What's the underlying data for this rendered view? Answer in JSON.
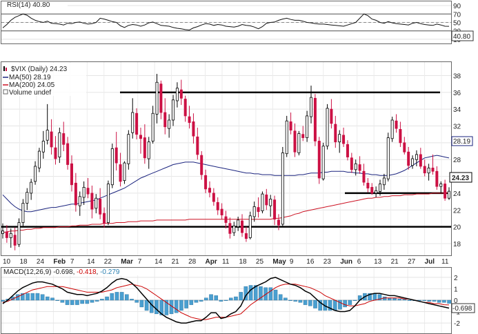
{
  "rsi": {
    "label": "RSI(14) 40.80",
    "current_label": "40.80",
    "ticks": [
      "90",
      "70",
      "50",
      "30",
      "10"
    ],
    "levels": [
      90,
      70,
      50,
      30,
      10
    ],
    "guides": [
      70,
      30
    ],
    "series": [
      37,
      45,
      55,
      62,
      66,
      70,
      67,
      60,
      55,
      52,
      50,
      53,
      48,
      47,
      46,
      44,
      48,
      47,
      50,
      51,
      48,
      46,
      47,
      50,
      60,
      58,
      55,
      52,
      50,
      42,
      38,
      43,
      45,
      44,
      41,
      44,
      49,
      51,
      47,
      43,
      42,
      41,
      38,
      36,
      35,
      33,
      32,
      37,
      40,
      44,
      47,
      46,
      43,
      45,
      44,
      41,
      40,
      39,
      41,
      45,
      43,
      42,
      39,
      35,
      40,
      48,
      50,
      51,
      55,
      58,
      60,
      57,
      55,
      55,
      53,
      50,
      49,
      47,
      46,
      46,
      45,
      44,
      43,
      42,
      41,
      44,
      47,
      50,
      60,
      70,
      66,
      58,
      55,
      50,
      48,
      52,
      49,
      47,
      46,
      45,
      44,
      48,
      50,
      47,
      45,
      44,
      43,
      46,
      44,
      41,
      40.8
    ]
  },
  "main": {
    "title": "$VIX (Daily) 24.23",
    "legend": [
      {
        "name": "MA(50) 28.19",
        "color": "#1a237e"
      },
      {
        "name": "MA(200) 24.05",
        "color": "#cc1122"
      },
      {
        "name": "Volume undef",
        "color": "#666666"
      }
    ],
    "price_labels": {
      "ma50": "28.19",
      "last": "24.23"
    },
    "y_ticks": [
      "38",
      "36",
      "34",
      "32",
      "30",
      "28",
      "26",
      "24",
      "22",
      "20",
      "18"
    ],
    "y_tick_values": [
      38,
      36,
      34,
      32,
      30,
      28,
      26,
      24,
      22,
      20,
      18
    ],
    "ylim": [
      16.6,
      39.6
    ],
    "x_labels": [
      "10",
      "18",
      "24",
      "Feb",
      "7",
      "14",
      "22",
      "Mar",
      "7",
      "14",
      "21",
      "28",
      "Apr",
      "11",
      "18",
      "25",
      "May",
      "9",
      "16",
      "23",
      "Jun",
      "6",
      "13",
      "21",
      "27",
      "Jul",
      "11"
    ],
    "bold_x_labels": [
      "Feb",
      "Mar",
      "Apr",
      "May",
      "Jun",
      "Jul"
    ]
  },
  "macd": {
    "label_prefix": "MACD(12,26,9)",
    "macd_value": "-0.698",
    "signal_value": "-0.418",
    "hist_value": "-0.279",
    "current_label": "-0.698",
    "ticks": [
      "2",
      "1",
      "0",
      "-1",
      "-2"
    ],
    "tick_values": [
      2,
      1,
      0,
      -1,
      -2
    ],
    "colors": {
      "macd": "#000000",
      "signal": "#cc0000",
      "hist": "#4a9fd0"
    }
  },
  "chart_data": {
    "type": "candlestick",
    "title": "$VIX (Daily) 24.23",
    "ylim": [
      16.6,
      39.6
    ],
    "horizontal_lines": [
      20,
      24,
      36
    ],
    "x_labels": [
      "10",
      "18",
      "24",
      "Feb",
      "7",
      "14",
      "22",
      "Mar",
      "7",
      "14",
      "21",
      "28",
      "Apr",
      "11",
      "18",
      "25",
      "May",
      "9",
      "16",
      "23",
      "Jun",
      "6",
      "13",
      "21",
      "27",
      "Jul",
      "11"
    ],
    "ohlc": [
      [
        19.2,
        20.4,
        18.6,
        19.5
      ],
      [
        19.4,
        20.2,
        18.1,
        18.7
      ],
      [
        18.7,
        19.8,
        17.5,
        19.2
      ],
      [
        19.0,
        19.9,
        17.2,
        17.8
      ],
      [
        17.9,
        21.0,
        17.6,
        20.5
      ],
      [
        20.5,
        23.3,
        20.1,
        22.8
      ],
      [
        22.8,
        24.6,
        22.0,
        24.1
      ],
      [
        24.0,
        25.7,
        23.2,
        25.3
      ],
      [
        25.4,
        27.8,
        25.0,
        27.2
      ],
      [
        27.0,
        29.4,
        26.5,
        29.0
      ],
      [
        28.9,
        31.4,
        28.1,
        30.2
      ],
      [
        30.3,
        34.6,
        29.8,
        31.5
      ],
      [
        31.3,
        32.8,
        28.6,
        29.5
      ],
      [
        29.4,
        30.8,
        27.4,
        28.1
      ],
      [
        28.3,
        31.8,
        27.6,
        31.2
      ],
      [
        31.1,
        32.5,
        29.0,
        29.8
      ],
      [
        29.9,
        30.7,
        26.8,
        27.4
      ],
      [
        27.5,
        28.5,
        24.2,
        25.0
      ],
      [
        25.2,
        26.4,
        21.8,
        22.6
      ],
      [
        22.5,
        24.2,
        21.3,
        23.6
      ],
      [
        23.5,
        25.4,
        22.6,
        24.7
      ],
      [
        24.6,
        25.8,
        23.4,
        23.9
      ],
      [
        24.0,
        24.9,
        21.0,
        22.1
      ],
      [
        22.2,
        23.9,
        21.6,
        23.4
      ],
      [
        23.3,
        24.6,
        20.9,
        21.5
      ],
      [
        21.6,
        22.3,
        19.9,
        20.4
      ],
      [
        20.5,
        25.5,
        20.2,
        25.1
      ],
      [
        25.0,
        29.9,
        24.6,
        29.3
      ],
      [
        29.4,
        31.3,
        26.7,
        27.6
      ],
      [
        27.4,
        28.8,
        24.8,
        25.4
      ],
      [
        25.5,
        27.8,
        25.1,
        27.6
      ],
      [
        27.5,
        31.5,
        26.8,
        31.0
      ],
      [
        31.2,
        35.3,
        30.5,
        33.6
      ],
      [
        33.5,
        34.1,
        30.4,
        31.0
      ],
      [
        30.9,
        31.8,
        28.7,
        30.5
      ],
      [
        30.6,
        32.2,
        27.5,
        28.2
      ],
      [
        28.1,
        30.7,
        26.9,
        30.1
      ],
      [
        30.2,
        34.4,
        29.9,
        33.5
      ],
      [
        33.4,
        38.2,
        32.3,
        37.2
      ],
      [
        37.0,
        37.4,
        32.8,
        33.6
      ],
      [
        33.6,
        35.3,
        31.0,
        31.9
      ],
      [
        31.7,
        33.4,
        30.6,
        32.7
      ],
      [
        32.7,
        35.7,
        32.0,
        35.1
      ],
      [
        35.0,
        37.2,
        34.2,
        36.5
      ],
      [
        36.3,
        37.5,
        34.5,
        35.3
      ],
      [
        35.2,
        35.6,
        32.5,
        33.2
      ],
      [
        33.1,
        34.4,
        31.7,
        32.4
      ],
      [
        32.5,
        33.5,
        29.9,
        30.8
      ],
      [
        30.7,
        31.8,
        28.0,
        28.6
      ],
      [
        28.5,
        29.0,
        25.6,
        26.2
      ],
      [
        26.1,
        26.8,
        24.0,
        24.5
      ],
      [
        24.6,
        25.4,
        23.5,
        24.1
      ],
      [
        24.0,
        24.6,
        22.5,
        23.0
      ],
      [
        22.9,
        23.5,
        21.4,
        22.0
      ],
      [
        22.1,
        22.8,
        20.9,
        21.4
      ],
      [
        21.2,
        21.9,
        19.8,
        20.5
      ],
      [
        20.4,
        21.1,
        18.6,
        19.2
      ],
      [
        19.3,
        20.6,
        18.9,
        20.1
      ],
      [
        20.0,
        21.2,
        19.5,
        20.8
      ],
      [
        20.7,
        21.5,
        18.8,
        19.3
      ],
      [
        19.2,
        20.0,
        18.2,
        18.6
      ],
      [
        18.7,
        21.8,
        18.5,
        21.3
      ],
      [
        21.2,
        23.0,
        20.6,
        22.4
      ],
      [
        22.3,
        23.5,
        21.1,
        21.8
      ],
      [
        21.9,
        24.2,
        21.6,
        23.9
      ],
      [
        23.8,
        24.5,
        22.0,
        22.6
      ],
      [
        22.5,
        23.8,
        21.2,
        23.3
      ],
      [
        23.2,
        23.7,
        20.2,
        20.9
      ],
      [
        20.8,
        21.5,
        19.6,
        20.2
      ],
      [
        20.3,
        29.5,
        20.1,
        28.8
      ],
      [
        28.7,
        33.2,
        28.3,
        32.6
      ],
      [
        32.5,
        33.6,
        31.0,
        31.5
      ],
      [
        31.4,
        32.3,
        28.3,
        28.9
      ],
      [
        28.8,
        31.4,
        28.5,
        31.1
      ],
      [
        31.0,
        32.0,
        30.2,
        30.6
      ],
      [
        30.6,
        33.8,
        30.1,
        33.2
      ],
      [
        33.1,
        36.8,
        32.3,
        35.4
      ],
      [
        35.3,
        35.8,
        29.6,
        30.2
      ],
      [
        30.2,
        30.7,
        25.1,
        25.8
      ],
      [
        25.7,
        30.0,
        25.5,
        29.6
      ],
      [
        29.6,
        34.6,
        29.2,
        34.1
      ],
      [
        34.0,
        35.2,
        31.7,
        32.3
      ],
      [
        32.2,
        33.2,
        29.4,
        30.1
      ],
      [
        30.1,
        31.5,
        28.8,
        31.0
      ],
      [
        30.9,
        31.8,
        29.5,
        29.9
      ],
      [
        29.8,
        30.3,
        27.9,
        28.3
      ],
      [
        28.2,
        28.8,
        26.4,
        26.8
      ],
      [
        26.8,
        28.0,
        26.1,
        27.5
      ],
      [
        27.4,
        28.4,
        26.3,
        26.7
      ],
      [
        26.6,
        27.5,
        24.9,
        25.3
      ],
      [
        25.2,
        25.8,
        24.1,
        24.6
      ],
      [
        24.7,
        25.2,
        23.8,
        24.0
      ],
      [
        24.0,
        24.8,
        23.5,
        24.3
      ],
      [
        24.2,
        25.6,
        23.7,
        25.1
      ],
      [
        25.0,
        26.3,
        24.4,
        25.8
      ],
      [
        25.7,
        31.2,
        25.4,
        30.6
      ],
      [
        30.5,
        33.1,
        30.1,
        32.7
      ],
      [
        32.6,
        33.4,
        31.2,
        31.7
      ],
      [
        31.6,
        32.5,
        29.5,
        30.0
      ],
      [
        30.0,
        30.7,
        28.6,
        28.9
      ],
      [
        28.9,
        29.5,
        26.8,
        27.3
      ],
      [
        27.3,
        28.5,
        26.9,
        28.1
      ],
      [
        28.0,
        29.1,
        27.2,
        28.6
      ],
      [
        28.6,
        29.4,
        26.9,
        27.2
      ],
      [
        27.2,
        28.0,
        26.0,
        26.4
      ],
      [
        26.4,
        27.5,
        25.5,
        27.0
      ],
      [
        27.0,
        28.6,
        26.2,
        26.6
      ],
      [
        26.6,
        27.2,
        24.4,
        24.8
      ],
      [
        24.8,
        25.4,
        24.0,
        25.1
      ],
      [
        25.1,
        25.6,
        23.1,
        23.4
      ],
      [
        23.4,
        24.7,
        23.2,
        24.23
      ]
    ],
    "ma50": [
      23.8,
      23.3,
      22.8,
      22.4,
      22.1,
      21.9,
      21.8,
      21.8,
      21.9,
      22.0,
      22.1,
      22.2,
      22.3,
      22.3,
      22.4,
      22.5,
      22.6,
      22.7,
      22.7,
      22.8,
      22.9,
      23.0,
      23.1,
      23.2,
      23.4,
      23.6,
      23.8,
      24.0,
      24.2,
      24.4,
      24.6,
      24.9,
      25.2,
      25.5,
      25.8,
      26.0,
      26.2,
      26.4,
      26.6,
      26.8,
      27.0,
      27.2,
      27.4,
      27.5,
      27.6,
      27.7,
      27.7,
      27.7,
      27.6,
      27.5,
      27.4,
      27.3,
      27.2,
      27.1,
      27.0,
      26.9,
      26.8,
      26.7,
      26.6,
      26.5,
      26.4,
      26.4,
      26.3,
      26.3,
      26.2,
      26.2,
      26.2,
      26.1,
      26.1,
      26.1,
      26.1,
      26.1,
      26.1,
      26.2,
      26.2,
      26.3,
      26.4,
      26.4,
      26.4,
      26.5,
      26.5,
      26.6,
      26.6,
      26.6,
      26.6,
      26.5,
      26.5,
      26.4,
      26.4,
      26.3,
      26.3,
      26.2,
      26.2,
      26.1,
      26.1,
      26.1,
      26.2,
      26.3,
      26.5,
      26.7,
      27.0,
      27.3,
      27.6,
      27.9,
      28.2,
      28.3,
      28.4,
      28.5,
      28.4,
      28.3,
      28.19
    ],
    "ma200": [
      19.3,
      19.4,
      19.5,
      19.5,
      19.6,
      19.6,
      19.7,
      19.7,
      19.8,
      19.8,
      19.9,
      19.9,
      19.9,
      19.9,
      20.0,
      20.0,
      20.0,
      20.1,
      20.1,
      20.2,
      20.2,
      20.2,
      20.3,
      20.3,
      20.3,
      20.4,
      20.4,
      20.4,
      20.5,
      20.5,
      20.5,
      20.6,
      20.6,
      20.6,
      20.7,
      20.7,
      20.7,
      20.7,
      20.8,
      20.8,
      20.8,
      20.8,
      20.8,
      20.8,
      20.8,
      20.8,
      20.9,
      20.9,
      20.9,
      20.9,
      20.9,
      20.9,
      20.9,
      20.9,
      20.9,
      20.9,
      20.9,
      20.9,
      20.9,
      20.9,
      20.9,
      20.9,
      20.9,
      20.9,
      20.9,
      20.9,
      20.9,
      21.0,
      21.0,
      21.1,
      21.2,
      21.3,
      21.5,
      21.6,
      21.8,
      21.9,
      22.0,
      22.1,
      22.2,
      22.3,
      22.4,
      22.5,
      22.6,
      22.7,
      22.8,
      22.9,
      23.0,
      23.1,
      23.2,
      23.3,
      23.4,
      23.4,
      23.5,
      23.5,
      23.6,
      23.6,
      23.7,
      23.7,
      23.7,
      23.8,
      23.8,
      23.8,
      23.9,
      23.9,
      23.9,
      23.9,
      24.0,
      24.0,
      24.0,
      24.0,
      24.05
    ],
    "macd": [
      -0.3,
      0.0,
      0.4,
      0.8,
      1.1,
      1.3,
      1.5,
      1.6,
      1.6,
      1.5,
      1.4,
      1.2,
      1.0,
      0.7,
      0.6,
      0.5,
      0.5,
      0.4,
      0.5,
      0.6,
      0.8,
      1.1,
      1.5,
      1.8,
      1.9,
      1.8,
      1.5,
      1.1,
      0.6,
      0.1,
      -0.4,
      -0.8,
      -1.2,
      -1.5,
      -1.7,
      -1.9,
      -2.0,
      -2.0,
      -1.9,
      -1.8,
      -1.8,
      -1.5,
      -1.1,
      -1.1,
      -1.6,
      -1.5,
      -1.2,
      -1.0,
      -0.5,
      0.4,
      0.9,
      1.2,
      1.4,
      1.6,
      1.9,
      2.0,
      1.8,
      1.6,
      1.4,
      1.3,
      1.1,
      0.8,
      0.6,
      0.2,
      -0.2,
      -0.5,
      -0.7,
      -0.9,
      -1.0,
      -1.0,
      -0.9,
      -0.5,
      0.0,
      0.3,
      0.5,
      0.6,
      0.6,
      0.5,
      0.4,
      0.4,
      0.3,
      0.2,
      0.1,
      0.0,
      -0.1,
      -0.2,
      -0.3,
      -0.4,
      -0.5,
      -0.6,
      -0.698
    ],
    "signal": [
      -0.2,
      -0.1,
      0.1,
      0.3,
      0.5,
      0.7,
      0.9,
      1.0,
      1.1,
      1.2,
      1.2,
      1.2,
      1.2,
      1.1,
      1.0,
      0.9,
      0.8,
      0.7,
      0.7,
      0.7,
      0.7,
      0.8,
      0.9,
      1.1,
      1.2,
      1.3,
      1.4,
      1.3,
      1.2,
      1.0,
      0.7,
      0.4,
      0.1,
      -0.2,
      -0.5,
      -0.8,
      -1.1,
      -1.3,
      -1.5,
      -1.6,
      -1.7,
      -1.7,
      -1.6,
      -1.5,
      -1.5,
      -1.5,
      -1.4,
      -1.3,
      -1.2,
      -0.8,
      -0.4,
      -0.1,
      0.2,
      0.5,
      0.8,
      1.1,
      1.3,
      1.4,
      1.4,
      1.4,
      1.3,
      1.2,
      1.1,
      0.9,
      0.7,
      0.4,
      0.2,
      0.0,
      -0.2,
      -0.4,
      -0.5,
      -0.5,
      -0.4,
      -0.3,
      -0.1,
      0.0,
      0.1,
      0.2,
      0.2,
      0.2,
      0.2,
      0.1,
      0.1,
      0.0,
      -0.1,
      -0.2,
      -0.2,
      -0.3,
      -0.3,
      -0.4,
      -0.418
    ]
  }
}
